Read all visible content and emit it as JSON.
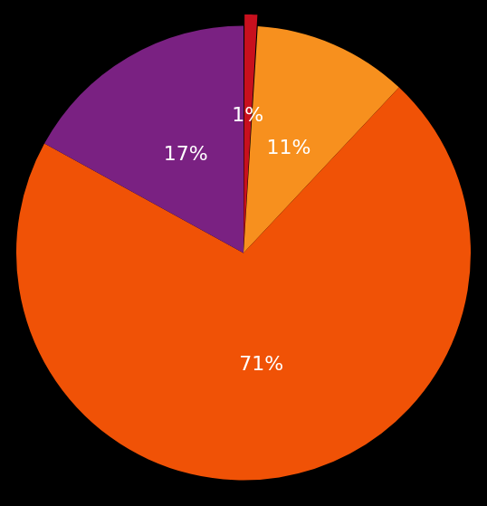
{
  "chart_data": {
    "type": "pie",
    "values": [
      1,
      11,
      71,
      17
    ],
    "value_labels": [
      "1%",
      "11%",
      "71%",
      "17%"
    ],
    "colors": [
      "#c8101e",
      "#f7901e",
      "#f05206",
      "#7a2182"
    ],
    "data_labels": true
  }
}
